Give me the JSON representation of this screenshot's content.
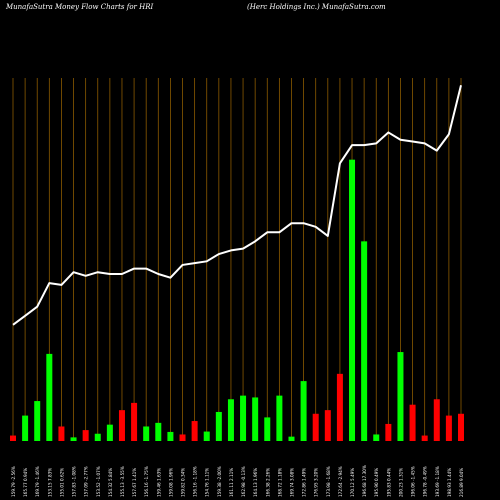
{
  "header": {
    "left": "MunafaSutra  Money Flow  Charts for HRI",
    "right": "(Herc Holdings Inc.) MunafaSutra.com"
  },
  "colors": {
    "background": "#000000",
    "grid": "#8B5A00",
    "up": "#00FF00",
    "down": "#FF0000",
    "line": "#FFFFFF",
    "label": "#FFFFFF"
  },
  "chart_data": {
    "type": "bar",
    "x_labels": [
      "159.79 -2.56%",
      "165.77 0.94%",
      "169.79 -1.46%",
      "153.15 7.83%",
      "155.01 0.62%",
      "157.83 -1.08%",
      "157.09 -2.77%",
      "153.52 -1.07%",
      "154.32 5.84%",
      "155.13 -3.55%",
      "157.67 1.41%",
      "156.16 -1.75%",
      "159.46 1.63%",
      "159.08 1.96%",
      "159.82 0.34%",
      "156.16 -1.18%",
      "154.76 1.11%",
      "159.38 -2.00%",
      "161.11 2.11%",
      "162.98 -0.13%",
      "164.13 1.96%",
      "166.38 2.26%",
      "168.72 1.18%",
      "169.74 3.08%",
      "172.86 1.49%",
      "176.95 3.20%",
      "173.98 -1.68%",
      "172.64 -2.94%",
      "170.12 5.49%",
      "196.68 17.30%",
      "195.90 0.49%",
      "195.83 0.44%",
      "200.23 1.31%",
      "196.06 -1.45%",
      "196.78 -0.49%",
      "193.69 -1.18%",
      "198.93 1.44%",
      "216.89 9.04%"
    ],
    "volume": [
      1.5,
      7.0,
      11.0,
      24.0,
      4.0,
      1.0,
      3.0,
      2.0,
      4.5,
      8.5,
      10.5,
      4.0,
      5.0,
      2.5,
      1.8,
      5.5,
      2.6,
      8.0,
      11.5,
      12.5,
      12.0,
      6.5,
      12.5,
      1.2,
      16.5,
      7.5,
      8.5,
      18.5,
      77.5,
      55.0,
      1.8,
      4.7,
      24.5,
      10.0,
      1.5,
      11.5,
      7.0,
      7.5
    ],
    "direction": [
      "down",
      "up",
      "up",
      "up",
      "down",
      "up",
      "down",
      "up",
      "up",
      "down",
      "down",
      "up",
      "up",
      "up",
      "down",
      "down",
      "up",
      "up",
      "up",
      "up",
      "up",
      "up",
      "up",
      "up",
      "up",
      "down",
      "down",
      "down",
      "up",
      "up",
      "up",
      "down",
      "up",
      "down",
      "down",
      "down",
      "down",
      "down"
    ],
    "price_line": [
      32.0,
      34.5,
      37.0,
      43.5,
      43.0,
      46.5,
      45.5,
      46.5,
      46.0,
      46.0,
      47.5,
      47.5,
      46.0,
      45.0,
      48.5,
      49.0,
      49.5,
      51.5,
      52.5,
      53.0,
      55.0,
      57.5,
      57.5,
      60.0,
      60.0,
      59.0,
      56.5,
      76.5,
      81.5,
      81.5,
      82.0,
      85.0,
      83.0,
      82.5,
      82.0,
      80.0,
      84.5,
      98.0
    ],
    "up_count_hint": null,
    "ylim": [
      0,
      100
    ]
  }
}
